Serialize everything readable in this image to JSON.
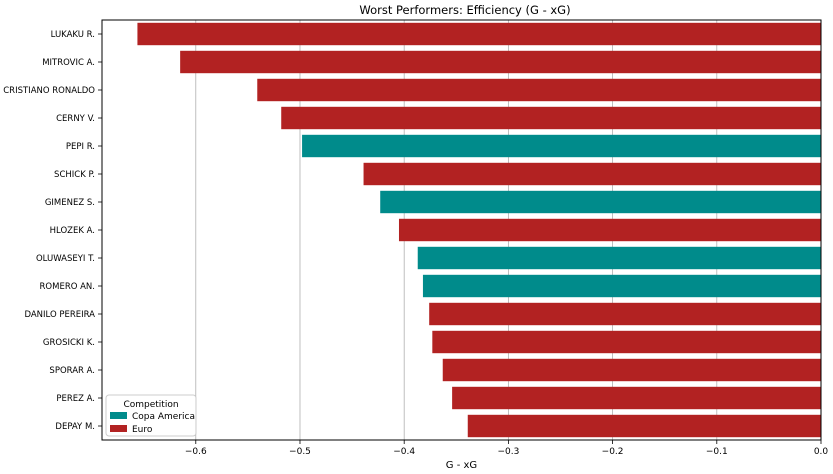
{
  "chart_data": {
    "type": "bar",
    "orientation": "horizontal",
    "title": "Worst Performers: Efficiency (G - xG)",
    "xlabel": "G - xG",
    "ylabel": "",
    "xlim": [
      -0.69,
      0.0
    ],
    "xticks": [
      -0.6,
      -0.5,
      -0.4,
      -0.3,
      -0.2,
      -0.1,
      0.0
    ],
    "xtick_labels": [
      "−0.6",
      "−0.5",
      "−0.4",
      "−0.3",
      "−0.2",
      "−0.1",
      "0.0"
    ],
    "grid": "vertical",
    "legend": {
      "title": "Competition",
      "position": "bottom-left",
      "entries": [
        {
          "name": "Copa America",
          "color": "#008b8b"
        },
        {
          "name": "Euro",
          "color": "#b22222"
        }
      ]
    },
    "players": [
      {
        "name": "LUKAKU R.",
        "value": -0.656,
        "competition": "Euro"
      },
      {
        "name": "MITROVIC A.",
        "value": -0.615,
        "competition": "Euro"
      },
      {
        "name": "CRISTIANO RONALDO",
        "value": -0.541,
        "competition": "Euro"
      },
      {
        "name": "CERNY V.",
        "value": -0.518,
        "competition": "Euro"
      },
      {
        "name": "PEPI R.",
        "value": -0.498,
        "competition": "Copa America"
      },
      {
        "name": "SCHICK P.",
        "value": -0.439,
        "competition": "Euro"
      },
      {
        "name": "GIMENEZ S.",
        "value": -0.423,
        "competition": "Copa America"
      },
      {
        "name": "HLOZEK A.",
        "value": -0.405,
        "competition": "Euro"
      },
      {
        "name": "OLUWASEYI T.",
        "value": -0.387,
        "competition": "Copa America"
      },
      {
        "name": "ROMERO AN.",
        "value": -0.382,
        "competition": "Copa America"
      },
      {
        "name": "DANILO PEREIRA",
        "value": -0.376,
        "competition": "Euro"
      },
      {
        "name": "GROSICKI K.",
        "value": -0.373,
        "competition": "Euro"
      },
      {
        "name": "SPORAR A.",
        "value": -0.363,
        "competition": "Euro"
      },
      {
        "name": "PEREZ A.",
        "value": -0.354,
        "competition": "Euro"
      },
      {
        "name": "DEPAY M.",
        "value": -0.339,
        "competition": "Euro"
      }
    ]
  }
}
